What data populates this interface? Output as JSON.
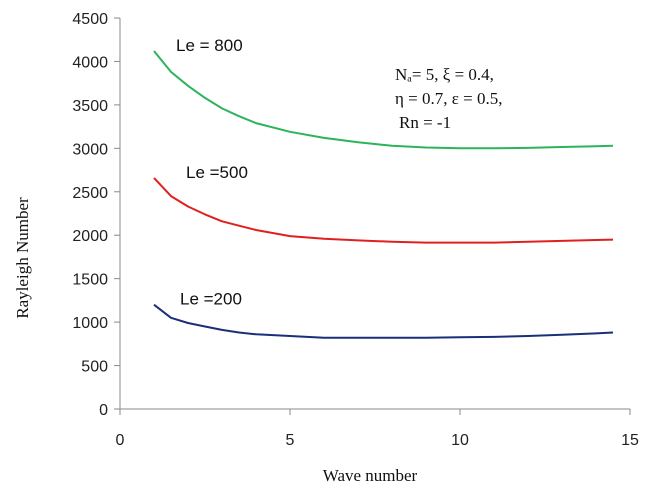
{
  "chart_data": {
    "type": "line",
    "title": "",
    "xlabel": "Wave number",
    "ylabel": "Rayleigh Number",
    "xlim": [
      0,
      15
    ],
    "ylim": [
      0,
      4500
    ],
    "xticks": [
      "0",
      "5",
      "10",
      "15"
    ],
    "yticks": [
      "0",
      "500",
      "1000",
      "1500",
      "2000",
      "2500",
      "3000",
      "3500",
      "4000",
      "4500"
    ],
    "grid": false,
    "legend": "none",
    "annotations": [
      "Nₐ= 5, ξ = 0.4,",
      "η = 0.7, ε = 0.5,",
      "Rn = -1"
    ],
    "series": [
      {
        "name": "Le = 800",
        "color": "#2db35a",
        "x": [
          1,
          1.5,
          2,
          2.5,
          3,
          3.5,
          4,
          5,
          6,
          7,
          8,
          9,
          10,
          11,
          12,
          13,
          14,
          14.5
        ],
        "y": [
          4120,
          3880,
          3720,
          3580,
          3460,
          3370,
          3290,
          3190,
          3120,
          3070,
          3030,
          3010,
          3000,
          3000,
          3005,
          3015,
          3025,
          3030
        ]
      },
      {
        "name": "Le =500",
        "color": "#e02020",
        "x": [
          1,
          1.5,
          2,
          2.5,
          3,
          3.5,
          4,
          5,
          6,
          7,
          8,
          9,
          10,
          11,
          12,
          13,
          14,
          14.5
        ],
        "y": [
          2660,
          2450,
          2330,
          2240,
          2160,
          2110,
          2060,
          1990,
          1960,
          1940,
          1925,
          1915,
          1915,
          1915,
          1925,
          1935,
          1945,
          1950
        ]
      },
      {
        "name": "Le =200",
        "color": "#1a2f78",
        "x": [
          1,
          1.5,
          2,
          2.5,
          3,
          3.5,
          4,
          5,
          6,
          7,
          8,
          9,
          10,
          11,
          12,
          13,
          14,
          14.5
        ],
        "y": [
          1200,
          1050,
          990,
          950,
          910,
          880,
          860,
          840,
          820,
          820,
          820,
          820,
          825,
          830,
          840,
          855,
          870,
          880
        ]
      }
    ]
  }
}
